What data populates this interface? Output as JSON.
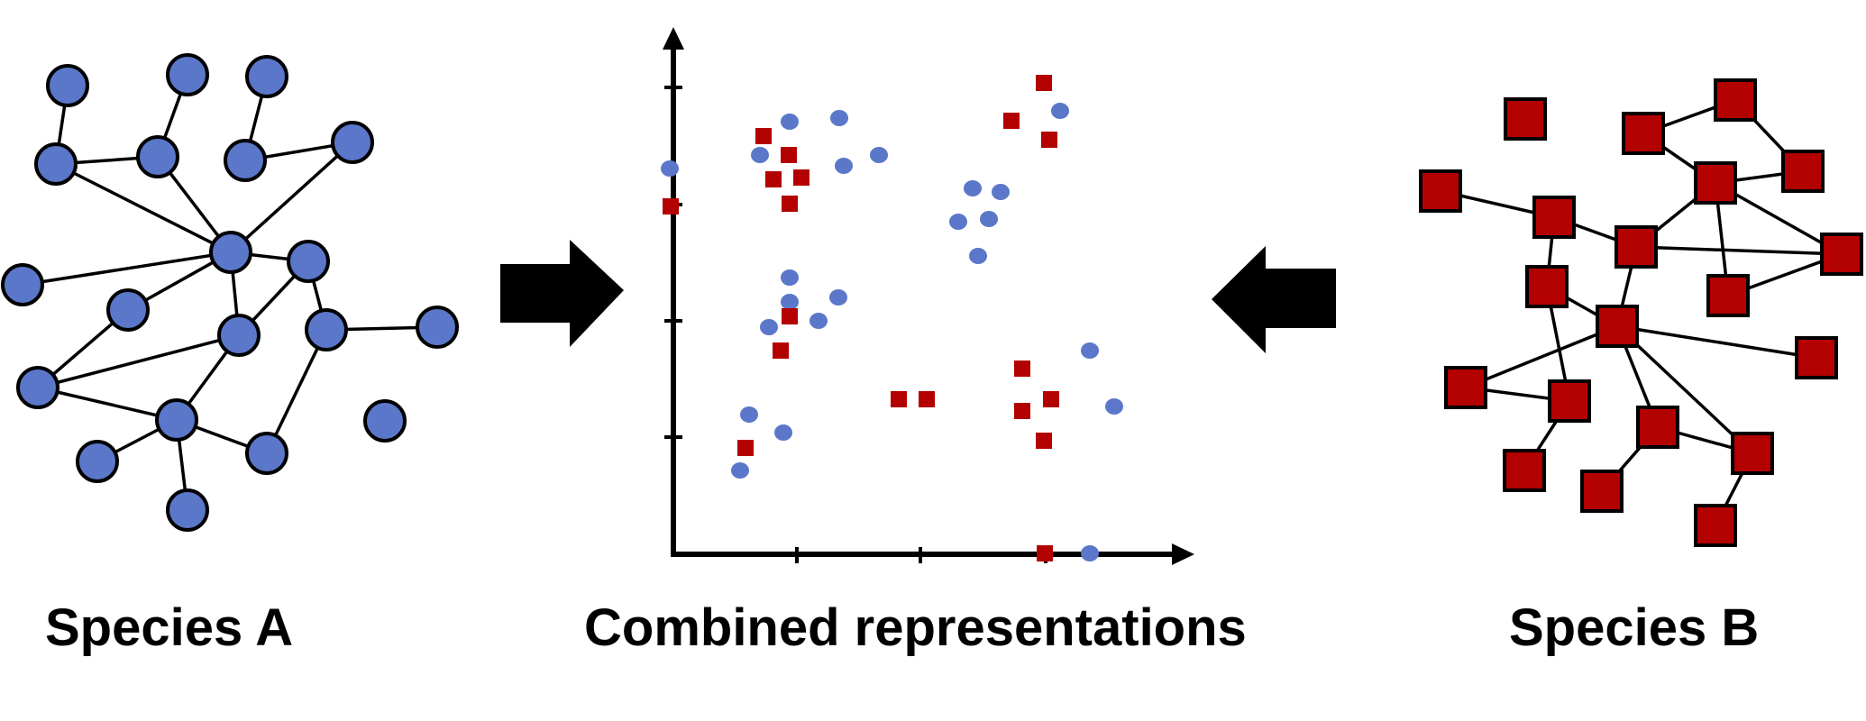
{
  "labels": {
    "species_a": "Species A",
    "combined": "Combined representations",
    "species_b": "Species B"
  },
  "colors": {
    "species_a": "#5B77C9",
    "species_b": "#B30000",
    "outline": "#000000",
    "arrow": "#000000"
  },
  "icons": {
    "species_a_node": "circle",
    "species_b_node": "square",
    "left_arrow": "arrow-right",
    "right_arrow": "arrow-left"
  }
}
